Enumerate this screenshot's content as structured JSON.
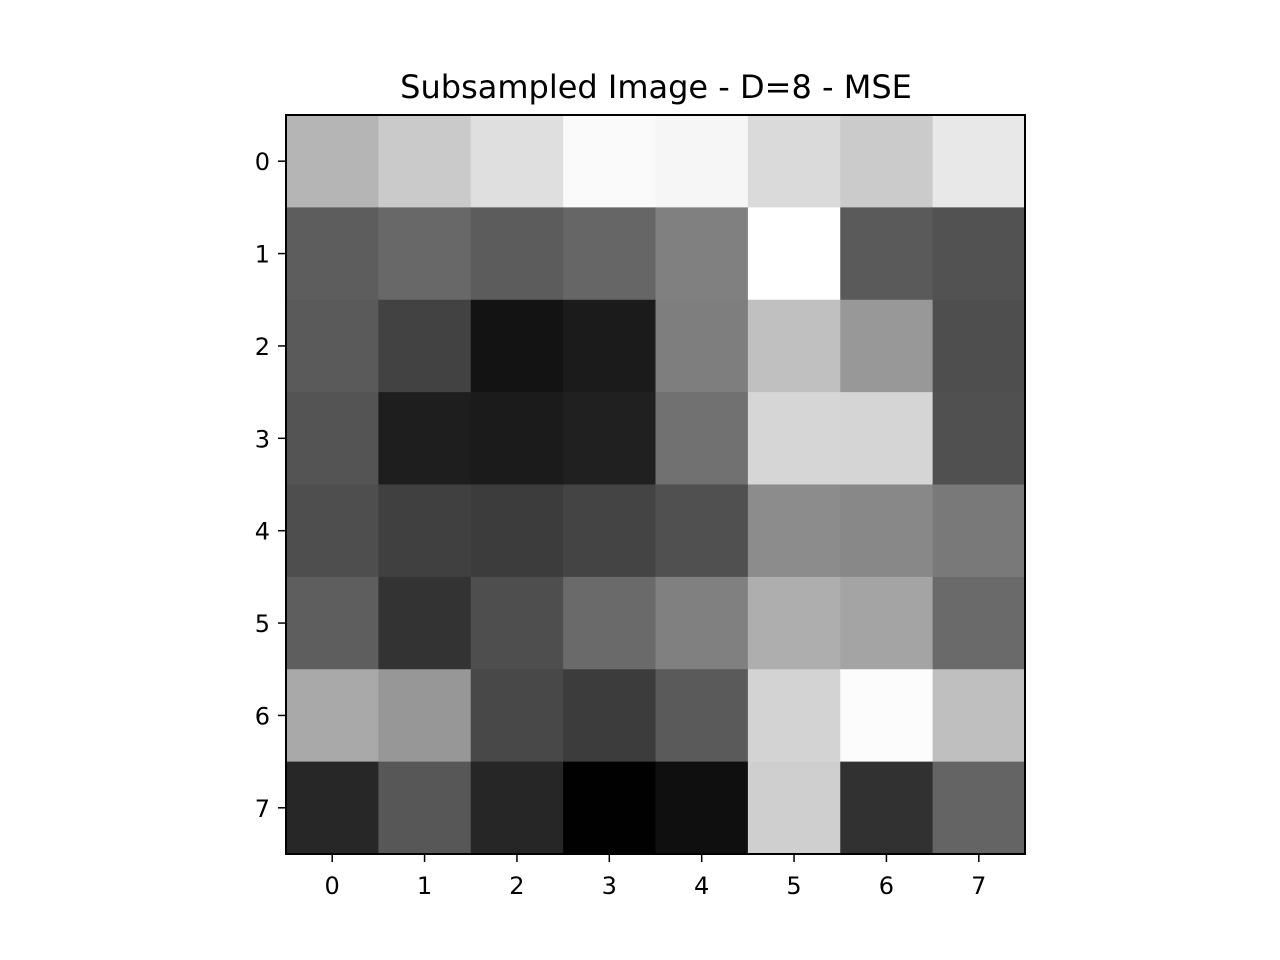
{
  "chart_data": {
    "type": "heatmap",
    "title": "Subsampled Image - D=8 - MSE",
    "xlabel": "",
    "ylabel": "",
    "colormap": "gray",
    "grid": false,
    "x_ticks": [
      "0",
      "1",
      "2",
      "3",
      "4",
      "5",
      "6",
      "7"
    ],
    "y_ticks": [
      "0",
      "1",
      "2",
      "3",
      "4",
      "5",
      "6",
      "7"
    ],
    "xlim": [
      -0.5,
      7.5
    ],
    "ylim": [
      7.5,
      -0.5
    ],
    "value_range": [
      0,
      255
    ],
    "values": [
      [
        181,
        202,
        223,
        250,
        246,
        218,
        203,
        232
      ],
      [
        93,
        104,
        92,
        102,
        128,
        255,
        90,
        82
      ],
      [
        90,
        66,
        19,
        27,
        126,
        192,
        152,
        78
      ],
      [
        84,
        30,
        27,
        32,
        113,
        214,
        213,
        80
      ],
      [
        78,
        64,
        60,
        68,
        80,
        140,
        136,
        121
      ],
      [
        94,
        51,
        78,
        106,
        128,
        174,
        164,
        106
      ],
      [
        169,
        151,
        72,
        60,
        90,
        211,
        252,
        191
      ],
      [
        39,
        87,
        38,
        1,
        15,
        207,
        49,
        100
      ]
    ]
  }
}
